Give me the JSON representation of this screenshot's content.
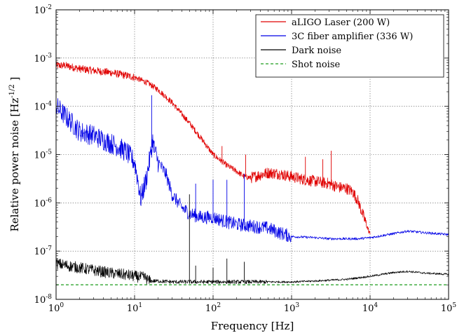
{
  "chart_data": {
    "type": "line",
    "title": "",
    "xlabel": "Frequency [Hz]",
    "ylabel": "Relative power noise [Hz",
    "ylabel_exponent": "-1/2",
    "ylabel_suffix": " ]",
    "x_scale": "log",
    "y_scale": "log",
    "xlim": [
      1,
      100000
    ],
    "ylim": [
      1e-08,
      0.01
    ],
    "grid": true,
    "legend_placement": "top-right",
    "x_ticks": [
      {
        "base": "10",
        "exp": "0",
        "value": 1
      },
      {
        "base": "10",
        "exp": "1",
        "value": 10
      },
      {
        "base": "10",
        "exp": "2",
        "value": 100
      },
      {
        "base": "10",
        "exp": "3",
        "value": 1000
      },
      {
        "base": "10",
        "exp": "4",
        "value": 10000
      },
      {
        "base": "10",
        "exp": "5",
        "value": 100000
      }
    ],
    "y_ticks": [
      {
        "base": "10",
        "exp": "-8",
        "value": 1e-08
      },
      {
        "base": "10",
        "exp": "-7",
        "value": 1e-07
      },
      {
        "base": "10",
        "exp": "-6",
        "value": 1e-06
      },
      {
        "base": "10",
        "exp": "-5",
        "value": 1e-05
      },
      {
        "base": "10",
        "exp": "-4",
        "value": 0.0001
      },
      {
        "base": "10",
        "exp": "-3",
        "value": 0.001
      },
      {
        "base": "10",
        "exp": "-2",
        "value": 0.01
      }
    ],
    "series": [
      {
        "name": "aLIGO Laser (200 W)",
        "color": "#e00000",
        "style": "solid",
        "x": [
          1,
          1.3,
          2,
          3,
          5,
          7,
          10,
          15,
          20,
          30,
          50,
          70,
          100,
          150,
          200,
          250,
          300,
          400,
          500,
          700,
          900,
          1000,
          1500,
          2000,
          3000,
          4000,
          5000,
          6000,
          7000,
          8000,
          9000,
          10000
        ],
        "y": [
          0.0007,
          0.0007,
          0.0006,
          0.00055,
          0.0005,
          0.00045,
          0.0004,
          0.0003,
          0.00022,
          0.00012,
          4.5e-05,
          2.2e-05,
          1e-05,
          6e-06,
          4.5e-06,
          3.5e-06,
          3.3e-06,
          3.8e-06,
          4.2e-06,
          4e-06,
          3.6e-06,
          3.5e-06,
          3e-06,
          2.8e-06,
          2.5e-06,
          2.1e-06,
          2e-06,
          1.7e-06,
          1.1e-06,
          6e-07,
          3.5e-07,
          2.2e-07
        ],
        "peaks": [
          {
            "x": 130,
            "y": 1.5e-05
          },
          {
            "x": 260,
            "y": 1e-05
          },
          {
            "x": 1500,
            "y": 9e-06
          },
          {
            "x": 2500,
            "y": 8e-06
          },
          {
            "x": 3200,
            "y": 1.2e-05
          }
        ]
      },
      {
        "name": "3C fiber amplifier (336 W)",
        "color": "#0000e6",
        "style": "solid",
        "x": [
          1,
          1.5,
          2,
          3,
          4,
          6,
          8,
          10,
          11,
          12,
          14,
          16,
          17,
          18,
          20,
          25,
          30,
          40,
          50,
          70,
          100,
          150,
          200,
          300,
          500,
          700,
          1000,
          2000,
          3000,
          5000,
          7000,
          10000,
          20000,
          30000,
          50000,
          100000
        ],
        "y": [
          0.0001,
          5e-05,
          3e-05,
          2.5e-05,
          2e-05,
          1.5e-05,
          1.1e-05,
          7e-06,
          3e-06,
          1.2e-06,
          3e-06,
          1e-05,
          2e-05,
          1.2e-05,
          7e-06,
          4e-06,
          1.5e-06,
          8e-07,
          6e-07,
          5e-07,
          5e-07,
          4e-07,
          3.6e-07,
          3.3e-07,
          3e-07,
          2.4e-07,
          2e-07,
          1.9e-07,
          1.8e-07,
          1.8e-07,
          1.8e-07,
          1.9e-07,
          2.3e-07,
          2.6e-07,
          2.4e-07,
          2.2e-07
        ],
        "peaks": [
          {
            "x": 16.5,
            "y": 0.00017
          },
          {
            "x": 60,
            "y": 2.5e-06
          },
          {
            "x": 100,
            "y": 3e-06
          },
          {
            "x": 150,
            "y": 3e-06
          },
          {
            "x": 250,
            "y": 4e-06
          }
        ]
      },
      {
        "name": "Dark noise",
        "color": "#000000",
        "style": "solid",
        "x": [
          1,
          2,
          3,
          5,
          8,
          10,
          14,
          15,
          20,
          30,
          50,
          100,
          200,
          500,
          1000,
          2000,
          5000,
          10000,
          20000,
          30000,
          50000,
          100000
        ],
        "y": [
          5.5e-08,
          4.5e-08,
          4e-08,
          3.5e-08,
          3.2e-08,
          3e-08,
          2.8e-08,
          2.4e-08,
          2.4e-08,
          2.3e-08,
          2.3e-08,
          2.3e-08,
          2.3e-08,
          2.3e-08,
          2.3e-08,
          2.4e-08,
          2.6e-08,
          3e-08,
          3.6e-08,
          3.8e-08,
          3.5e-08,
          3.3e-08
        ],
        "peaks": [
          {
            "x": 50,
            "y": 1.5e-06
          },
          {
            "x": 60,
            "y": 5e-08
          },
          {
            "x": 100,
            "y": 4.5e-08
          },
          {
            "x": 150,
            "y": 7e-08
          },
          {
            "x": 250,
            "y": 6e-08
          }
        ]
      },
      {
        "name": "Shot noise",
        "color": "#1f9e1f",
        "style": "dashed",
        "x": [
          1,
          100000
        ],
        "y": [
          2e-08,
          2e-08
        ],
        "peaks": []
      }
    ]
  }
}
